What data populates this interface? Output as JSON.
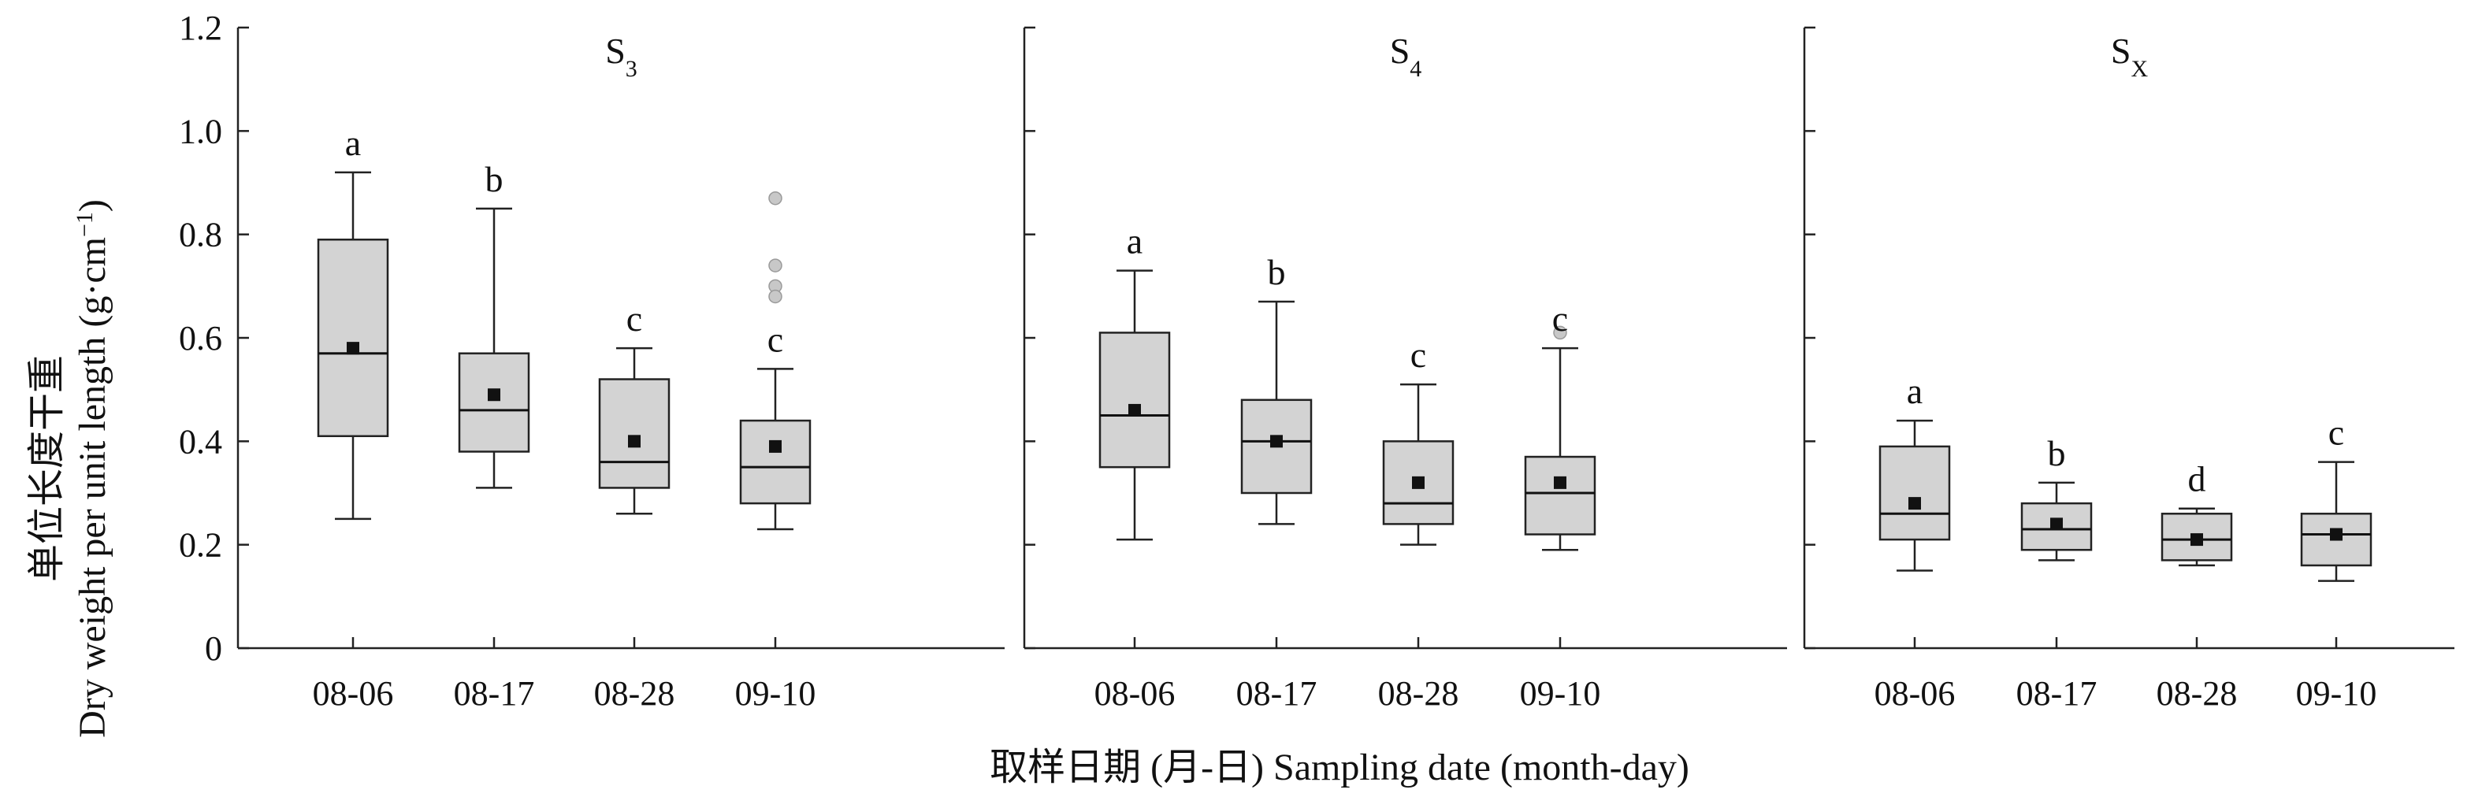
{
  "y_title_cn": "单位长度干重",
  "y_title_en": "Dry weight per unit length (g·cm",
  "y_title_unit_exp": "−1",
  "y_title_close": ")",
  "x_title": "取样日期 (月-日) Sampling date (month-day)",
  "colors": {
    "box_fill": "#d3d3d3",
    "line": "#222222",
    "outlier": "#c8c8c8"
  },
  "chart_data": {
    "type": "box",
    "ylim": [
      0,
      1.2
    ],
    "y_ticks": [
      "0",
      "0.2",
      "0.4",
      "0.6",
      "0.8",
      "1.0",
      "1.2"
    ],
    "categories": [
      "08-06",
      "08-17",
      "08-28",
      "09-10"
    ],
    "legend": "none",
    "grid": false,
    "panels": [
      {
        "title": "S",
        "title_sub": "3",
        "boxes": [
          {
            "category": "08-06",
            "min": 0.25,
            "q1": 0.41,
            "median": 0.57,
            "q3": 0.79,
            "max": 0.92,
            "mean": 0.58,
            "letter": "a",
            "outliers": []
          },
          {
            "category": "08-17",
            "min": 0.31,
            "q1": 0.38,
            "median": 0.46,
            "q3": 0.57,
            "max": 0.85,
            "mean": 0.49,
            "letter": "b",
            "outliers": []
          },
          {
            "category": "08-28",
            "min": 0.26,
            "q1": 0.31,
            "median": 0.36,
            "q3": 0.52,
            "max": 0.58,
            "mean": 0.4,
            "letter": "c",
            "outliers": []
          },
          {
            "category": "09-10",
            "min": 0.23,
            "q1": 0.28,
            "median": 0.35,
            "q3": 0.44,
            "max": 0.54,
            "mean": 0.39,
            "letter": "c",
            "outliers": [
              0.87,
              0.74,
              0.7,
              0.68
            ]
          }
        ]
      },
      {
        "title": "S",
        "title_sub": "4",
        "boxes": [
          {
            "category": "08-06",
            "min": 0.21,
            "q1": 0.35,
            "median": 0.45,
            "q3": 0.61,
            "max": 0.73,
            "mean": 0.46,
            "letter": "a",
            "outliers": []
          },
          {
            "category": "08-17",
            "min": 0.24,
            "q1": 0.3,
            "median": 0.4,
            "q3": 0.48,
            "max": 0.67,
            "mean": 0.4,
            "letter": "b",
            "outliers": []
          },
          {
            "category": "08-28",
            "min": 0.2,
            "q1": 0.24,
            "median": 0.28,
            "q3": 0.4,
            "max": 0.51,
            "mean": 0.32,
            "letter": "c",
            "outliers": []
          },
          {
            "category": "09-10",
            "min": 0.19,
            "q1": 0.22,
            "median": 0.3,
            "q3": 0.37,
            "max": 0.58,
            "mean": 0.32,
            "letter": "c",
            "outliers": [
              0.61
            ]
          }
        ]
      },
      {
        "title": "S",
        "title_sub": "X",
        "boxes": [
          {
            "category": "08-06",
            "min": 0.15,
            "q1": 0.21,
            "median": 0.26,
            "q3": 0.39,
            "max": 0.44,
            "mean": 0.28,
            "letter": "a",
            "outliers": []
          },
          {
            "category": "08-17",
            "min": 0.17,
            "q1": 0.19,
            "median": 0.23,
            "q3": 0.28,
            "max": 0.32,
            "mean": 0.24,
            "letter": "b",
            "outliers": []
          },
          {
            "category": "08-28",
            "min": 0.16,
            "q1": 0.17,
            "median": 0.21,
            "q3": 0.26,
            "max": 0.27,
            "mean": 0.21,
            "letter": "d",
            "outliers": []
          },
          {
            "category": "09-10",
            "min": 0.13,
            "q1": 0.16,
            "median": 0.22,
            "q3": 0.26,
            "max": 0.36,
            "mean": 0.22,
            "letter": "c",
            "outliers": []
          }
        ]
      }
    ]
  }
}
